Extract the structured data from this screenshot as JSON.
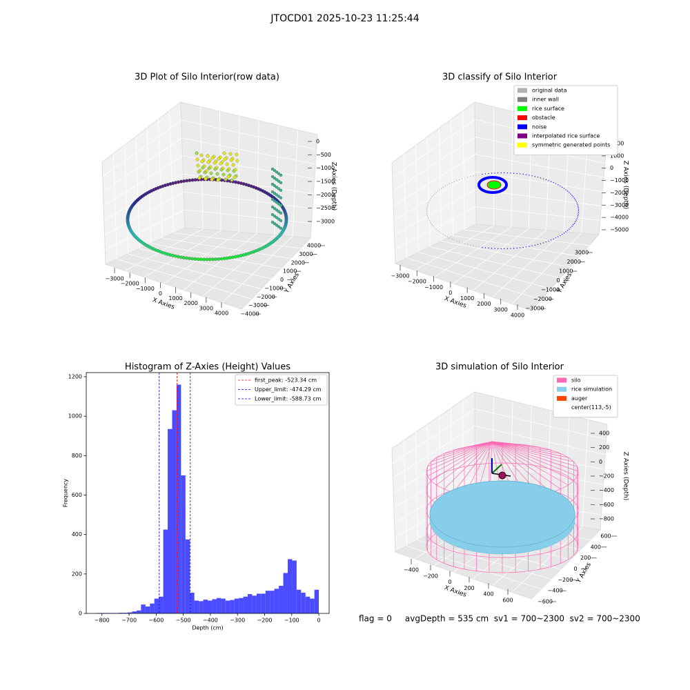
{
  "title": "JTOCD01 2025-10-23 11:25:44",
  "footer_text": "flag = 0     avgDepth = 535 cm  sv1 = 700~2300  sv2 = 700~2300",
  "chart_data": [
    {
      "type": "scatter3d",
      "title": "3D Plot of Silo Interior(row data)",
      "x_label": "X Axies",
      "y_label": "Y Axies",
      "z_label": "Z Axies (Depth)",
      "xticks": [
        {
          "value": -3000,
          "label": "−3000"
        },
        {
          "value": -2000,
          "label": "−2000"
        },
        {
          "value": -1000,
          "label": "−1000"
        },
        0,
        1000,
        2000,
        3000,
        4000
      ],
      "yticks": [
        {
          "value": -4000,
          "label": "−4000"
        },
        {
          "value": -3000,
          "label": "−3000"
        },
        {
          "value": -2000,
          "label": "−2000"
        },
        {
          "value": -1000,
          "label": "−1000"
        },
        0,
        1000,
        2000,
        3000,
        4000
      ],
      "zticks": [
        {
          "value": -3000,
          "label": "−3000"
        },
        {
          "value": -2500,
          "label": "−2500"
        },
        {
          "value": -2000,
          "label": "−2000"
        },
        {
          "value": -1500,
          "label": "−1500"
        },
        {
          "value": -1000,
          "label": "−1000"
        },
        {
          "value": -500,
          "label": "−500"
        },
        0
      ]
    },
    {
      "type": "scatter3d",
      "title": "3D classify of Silo Interior",
      "x_label": "X Axies",
      "y_label": "Y Axies",
      "z_label": "Z Axies (Depth)",
      "xticks": [
        {
          "value": -3000,
          "label": "−3000"
        },
        {
          "value": -2000,
          "label": "−2000"
        },
        {
          "value": -1000,
          "label": "−1000"
        },
        0,
        1000,
        2000,
        3000,
        4000
      ],
      "yticks": [
        {
          "value": -3000,
          "label": "−3000"
        },
        {
          "value": -2000,
          "label": "−2000"
        },
        {
          "value": -1000,
          "label": "−1000"
        },
        0,
        1000,
        2000,
        3000
      ],
      "zticks": [
        {
          "value": -5000,
          "label": "−5000"
        },
        {
          "value": -4000,
          "label": "−4000"
        },
        {
          "value": -3000,
          "label": "−3000"
        },
        {
          "value": -2000,
          "label": "−2000"
        },
        {
          "value": -1000,
          "label": "−1000"
        },
        0,
        1000,
        2000
      ],
      "series": [
        {
          "name": "original data",
          "color": "#b3b3b3"
        },
        {
          "name": "inner wall",
          "color": "#808080"
        },
        {
          "name": "rice surface",
          "color": "#00ff00"
        },
        {
          "name": "obstacle",
          "color": "#ff0000"
        },
        {
          "name": "noise",
          "color": "#0000ff"
        },
        {
          "name": "interpolated rice surface",
          "color": "#800080"
        },
        {
          "name": "symmetric generated points",
          "color": "#ffff00"
        }
      ]
    },
    {
      "type": "histogram",
      "title": "Histogram of Z-Axies (Height) Values",
      "x_label": "Depth (cm)",
      "y_label": "Frequency",
      "color": "#4b4bff",
      "bins": [
        -820,
        -803.6,
        -787.2,
        -770.8,
        -754.4,
        -738,
        -721.6,
        -705.2,
        -688.8,
        -672.4,
        -656,
        -639.6,
        -623.2,
        -606.8,
        -590.4,
        -574,
        -557.6,
        -541.2,
        -524.8,
        -508.4,
        -492,
        -475.6,
        -459.2,
        -442.8,
        -426.4,
        -410,
        -393.6,
        -377.2,
        -360.8,
        -344.4,
        -328,
        -311.6,
        -295.2,
        -278.8,
        -262.4,
        -246,
        -229.6,
        -213.2,
        -196.8,
        -180.4,
        -164,
        -147.6,
        -131.2,
        -114.8,
        -98.4,
        -82,
        -65.6,
        -49.2,
        -32.8,
        -16.4,
        0
      ],
      "values": [
        2,
        2,
        2,
        2,
        2,
        3,
        3,
        5,
        10,
        15,
        45,
        35,
        50,
        75,
        85,
        425,
        935,
        1030,
        1160,
        700,
        375,
        105,
        65,
        62,
        70,
        65,
        72,
        78,
        75,
        65,
        68,
        75,
        78,
        85,
        98,
        90,
        100,
        100,
        115,
        115,
        125,
        140,
        205,
        275,
        268,
        120,
        105,
        85,
        75,
        120
      ],
      "xlim": [
        -858,
        38
      ],
      "ylim": [
        0,
        1221
      ],
      "xticks": [
        {
          "value": -800,
          "label": "−800"
        },
        {
          "value": -700,
          "label": "−700"
        },
        {
          "value": -600,
          "label": "−600"
        },
        {
          "value": -500,
          "label": "−500"
        },
        {
          "value": -400,
          "label": "−400"
        },
        {
          "value": -300,
          "label": "−300"
        },
        {
          "value": -200,
          "label": "−200"
        },
        {
          "value": -100,
          "label": "−100"
        },
        0
      ],
      "yticks": [
        0,
        200,
        400,
        600,
        800,
        1000,
        1200
      ],
      "vlines": [
        {
          "name": "first_peak: -523.34 cm",
          "value": -523.34,
          "color": "#ff0000"
        },
        {
          "name": "Upper_limit: -474.29 cm",
          "value": -474.29,
          "color": "#0000ff"
        },
        {
          "name": "Lower_limit: -588.73 cm",
          "value": -588.73,
          "color": "#0000ff"
        }
      ]
    },
    {
      "type": "surface3d",
      "title": "3D simulation of Silo Interior",
      "x_label": "X Axies",
      "y_label": "Y Axies",
      "z_label": "Z Axies (Depth)",
      "xticks": [
        {
          "value": -400,
          "label": "−400"
        },
        {
          "value": -200,
          "label": "−200"
        },
        0,
        200,
        400,
        600
      ],
      "yticks": [
        {
          "value": -600,
          "label": "−600"
        },
        {
          "value": -400,
          "label": "−400"
        },
        {
          "value": -200,
          "label": "−200"
        },
        0,
        200,
        400,
        600
      ],
      "zticks": [
        {
          "value": -800,
          "label": "−800"
        },
        {
          "value": -600,
          "label": "−600"
        },
        {
          "value": -400,
          "label": "−400"
        },
        {
          "value": -200,
          "label": "−200"
        },
        0,
        200,
        400
      ],
      "series": [
        {
          "name": "silo",
          "color": "#ff69b4"
        },
        {
          "name": "rice simulation",
          "color": "#87ceeb"
        },
        {
          "name": "auger",
          "color": "#ff4500"
        },
        {
          "name": "center(113,-5)",
          "color": "#ffffff"
        }
      ]
    }
  ]
}
